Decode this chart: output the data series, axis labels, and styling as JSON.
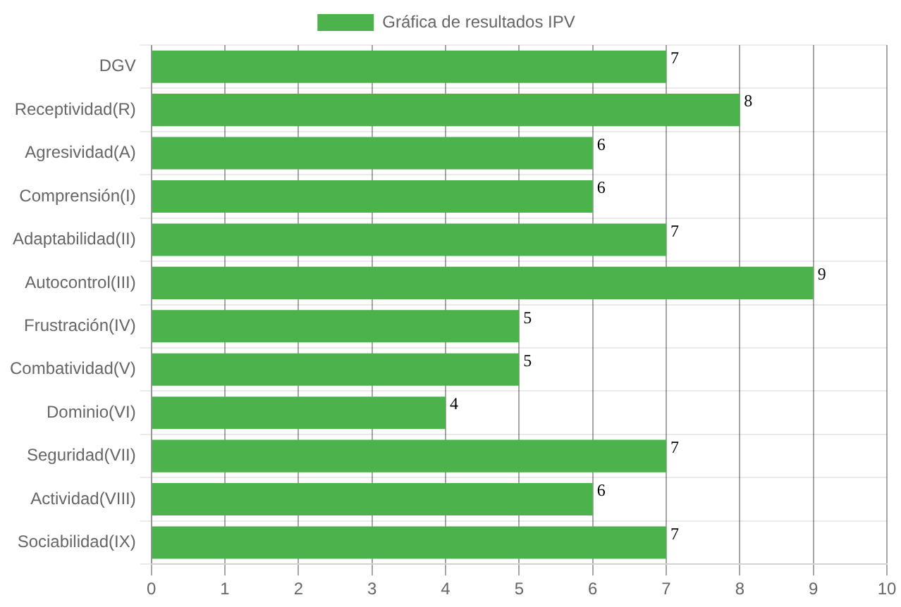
{
  "chart_data": {
    "type": "bar",
    "orientation": "horizontal",
    "categories": [
      "DGV",
      "Receptividad(R)",
      "Agresividad(A)",
      "Comprensión(I)",
      "Adaptabilidad(II)",
      "Autocontrol(III)",
      "Frustración(IV)",
      "Combatividad(V)",
      "Dominio(VI)",
      "Seguridad(VII)",
      "Actividad(VIII)",
      "Sociabilidad(IX)"
    ],
    "series": [
      {
        "name": "Gráfica de resultados IPV",
        "color": "#4cb34c",
        "values": [
          7,
          8,
          6,
          6,
          7,
          9,
          5,
          5,
          4,
          7,
          6,
          7
        ]
      }
    ],
    "xlim": [
      0,
      10
    ],
    "xticks": [
      0,
      1,
      2,
      3,
      4,
      5,
      6,
      7,
      8,
      9,
      10
    ],
    "grid": true,
    "legend": "top",
    "data_labels": true
  }
}
